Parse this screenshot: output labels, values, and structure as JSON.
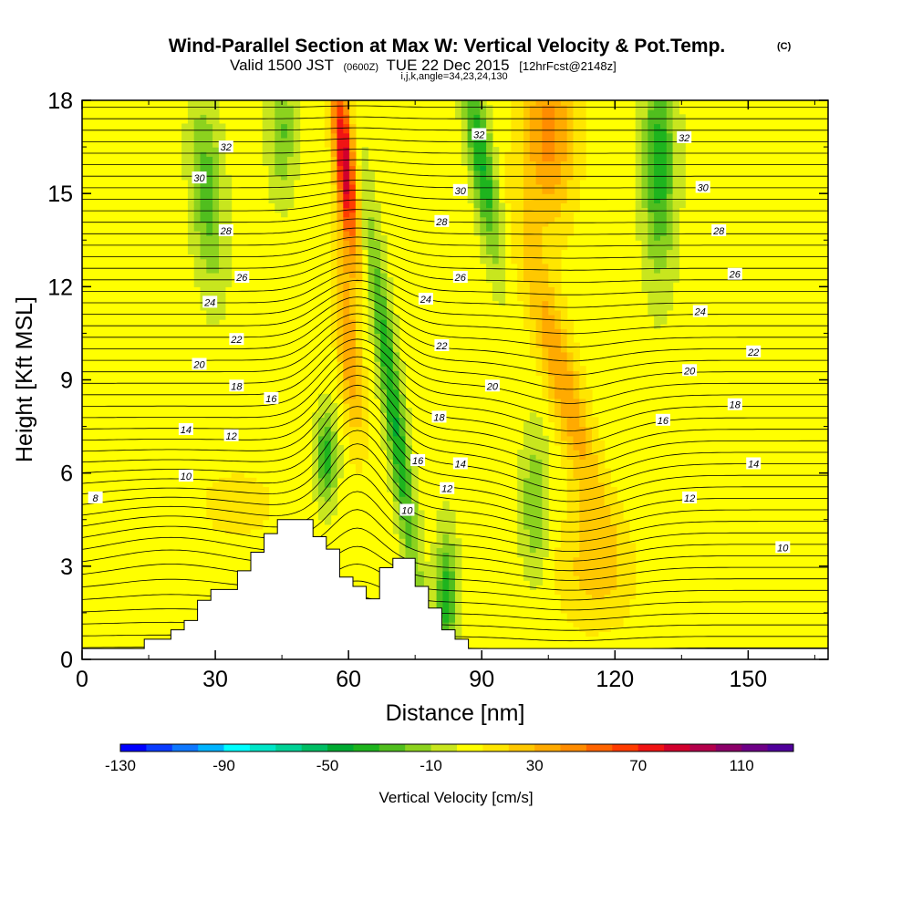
{
  "chart_data": {
    "type": "heatmap",
    "title": "Wind-Parallel Section at Max W: Vertical Velocity & Pot.Temp.",
    "title_mark": "(C)",
    "subtitle": {
      "valid": "Valid 1500 JST",
      "utc": "(0600Z)",
      "date": "TUE 22 Dec 2015",
      "forecast": "[12hrFcst@2148z]"
    },
    "indices": "i,j,k,angle=34,23,24,130",
    "xlabel": "Distance [nm]",
    "ylabel": "Height [Kft MSL]",
    "xlim": [
      0,
      168
    ],
    "ylim": [
      0,
      18
    ],
    "x_ticks": [
      "0",
      "30",
      "60",
      "90",
      "120",
      "150"
    ],
    "y_ticks": [
      "0",
      "3",
      "6",
      "9",
      "12",
      "15",
      "18"
    ],
    "colorbar": {
      "label": "Vertical Velocity [cm/s]",
      "tick_labels": [
        "-130",
        "-90",
        "-50",
        "-10",
        "30",
        "70",
        "110"
      ],
      "colors": [
        "#0000ff",
        "#0a3cff",
        "#0f78ff",
        "#00b4ff",
        "#00ffff",
        "#00e6c8",
        "#00d296",
        "#00be64",
        "#00aa32",
        "#1eb41e",
        "#50be1e",
        "#8cd21e",
        "#c8e61e",
        "#ffff00",
        "#ffe600",
        "#ffc800",
        "#ffaa00",
        "#ff8c00",
        "#ff6400",
        "#ff3c00",
        "#f01414",
        "#d2002d",
        "#b4004b",
        "#8c0069",
        "#6e0087",
        "#50009b"
      ]
    },
    "contour_labels": [
      {
        "text": "32",
        "x": 54,
        "y": 16.5
      },
      {
        "text": "32",
        "x": 149,
        "y": 16.9
      },
      {
        "text": "32",
        "x": 226,
        "y": 16.8
      },
      {
        "text": "30",
        "x": 44,
        "y": 15.5
      },
      {
        "text": "30",
        "x": 142,
        "y": 15.1
      },
      {
        "text": "30",
        "x": 233,
        "y": 15.2
      },
      {
        "text": "28",
        "x": 54,
        "y": 13.8
      },
      {
        "text": "28",
        "x": 135,
        "y": 14.1
      },
      {
        "text": "28",
        "x": 239,
        "y": 13.8
      },
      {
        "text": "26",
        "x": 60,
        "y": 12.3
      },
      {
        "text": "26",
        "x": 142,
        "y": 12.3
      },
      {
        "text": "26",
        "x": 245,
        "y": 12.4
      },
      {
        "text": "24",
        "x": 48,
        "y": 11.5
      },
      {
        "text": "24",
        "x": 129,
        "y": 11.6
      },
      {
        "text": "24",
        "x": 232,
        "y": 11.2
      },
      {
        "text": "22",
        "x": 58,
        "y": 10.3
      },
      {
        "text": "22",
        "x": 135,
        "y": 10.1
      },
      {
        "text": "22",
        "x": 252,
        "y": 9.9
      },
      {
        "text": "20",
        "x": 44,
        "y": 9.5
      },
      {
        "text": "20",
        "x": 154,
        "y": 8.8
      },
      {
        "text": "20",
        "x": 228,
        "y": 9.3
      },
      {
        "text": "18",
        "x": 58,
        "y": 8.8
      },
      {
        "text": "18",
        "x": 134,
        "y": 7.8
      },
      {
        "text": "18",
        "x": 245,
        "y": 8.2
      },
      {
        "text": "16",
        "x": 71,
        "y": 8.4
      },
      {
        "text": "16",
        "x": 126,
        "y": 6.4
      },
      {
        "text": "16",
        "x": 218,
        "y": 7.7
      },
      {
        "text": "14",
        "x": 39,
        "y": 7.4
      },
      {
        "text": "14",
        "x": 142,
        "y": 6.3
      },
      {
        "text": "14",
        "x": 252,
        "y": 6.3
      },
      {
        "text": "12",
        "x": 56,
        "y": 7.2
      },
      {
        "text": "12",
        "x": 137,
        "y": 5.5
      },
      {
        "text": "12",
        "x": 228,
        "y": 5.2
      },
      {
        "text": "10",
        "x": 39,
        "y": 5.9
      },
      {
        "text": "10",
        "x": 122,
        "y": 4.8
      },
      {
        "text": "10",
        "x": 263,
        "y": 3.6
      },
      {
        "text": "8",
        "x": 5,
        "y": 5.2
      }
    ]
  }
}
